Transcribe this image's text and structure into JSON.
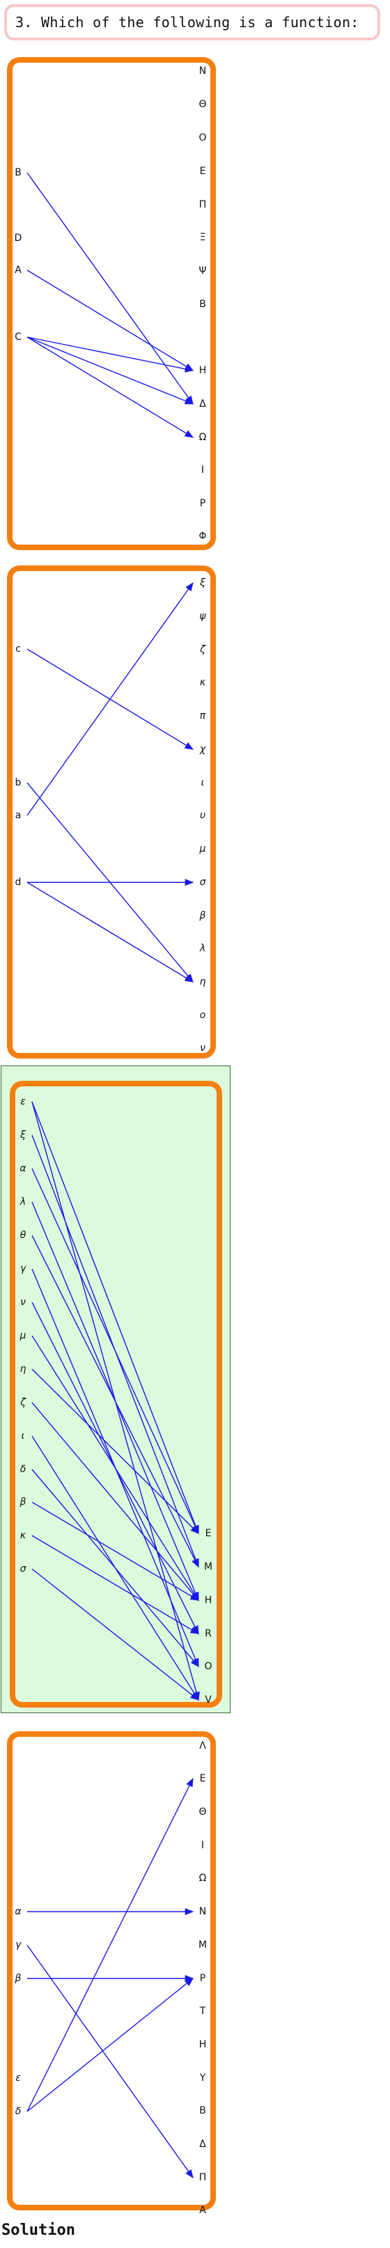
{
  "question": "3. Which of the following is a function:",
  "solution_label": "Solution",
  "colors": {
    "card_border": "#f47f10",
    "arrow": "#1a1ae6",
    "selected_bg": "#dcfadc"
  },
  "options": [
    {
      "selected": false,
      "domain": [
        "B",
        "D",
        "A",
        "C"
      ],
      "codomain": [
        "N",
        "Θ",
        "O",
        "E",
        "Π",
        "Ξ",
        "Ψ",
        "B",
        "H",
        "Δ",
        "Ω",
        "I",
        "P",
        "Φ"
      ],
      "mappings": [
        [
          "B",
          "Δ"
        ],
        [
          "A",
          "H"
        ],
        [
          "C",
          "Δ"
        ],
        [
          "C",
          "Ω"
        ],
        [
          "C",
          "H"
        ]
      ]
    },
    {
      "selected": false,
      "domain": [
        "c",
        "b",
        "a",
        "d"
      ],
      "codomain": [
        "ξ",
        "ψ",
        "ζ",
        "κ",
        "π",
        "χ",
        "ι",
        "υ",
        "μ",
        "σ",
        "β",
        "λ",
        "η",
        "ο",
        "ν"
      ],
      "mappings": [
        [
          "c",
          "χ"
        ],
        [
          "b",
          "η"
        ],
        [
          "a",
          "ξ"
        ],
        [
          "d",
          "σ"
        ],
        [
          "d",
          "η"
        ]
      ]
    },
    {
      "selected": true,
      "domain": [
        "ε",
        "ξ",
        "α",
        "λ",
        "θ",
        "γ",
        "ν",
        "μ",
        "η",
        "ζ",
        "ι",
        "δ",
        "β",
        "κ",
        "σ"
      ],
      "codomain": [
        "E",
        "M",
        "H",
        "R",
        "O",
        "V"
      ],
      "mappings": [
        [
          "ε",
          "E"
        ],
        [
          "ε",
          "V"
        ],
        [
          "ξ",
          "M"
        ],
        [
          "α",
          "E"
        ],
        [
          "λ",
          "H"
        ],
        [
          "θ",
          "M"
        ],
        [
          "γ",
          "O"
        ],
        [
          "ν",
          "R"
        ],
        [
          "μ",
          "H"
        ],
        [
          "η",
          "E"
        ],
        [
          "ζ",
          "H"
        ],
        [
          "ι",
          "V"
        ],
        [
          "δ",
          "O"
        ],
        [
          "β",
          "H"
        ],
        [
          "κ",
          "R"
        ],
        [
          "σ",
          "V"
        ]
      ]
    },
    {
      "selected": false,
      "domain": [
        "α",
        "γ",
        "β",
        "ε",
        "δ"
      ],
      "codomain": [
        "Λ",
        "E",
        "Θ",
        "I",
        "Ω",
        "N",
        "M",
        "P",
        "T",
        "H",
        "Y",
        "B",
        "Δ",
        "Π",
        "A"
      ],
      "mappings": [
        [
          "α",
          "N"
        ],
        [
          "γ",
          "Π"
        ],
        [
          "β",
          "P"
        ],
        [
          "δ",
          "E"
        ],
        [
          "δ",
          "P"
        ]
      ]
    }
  ]
}
